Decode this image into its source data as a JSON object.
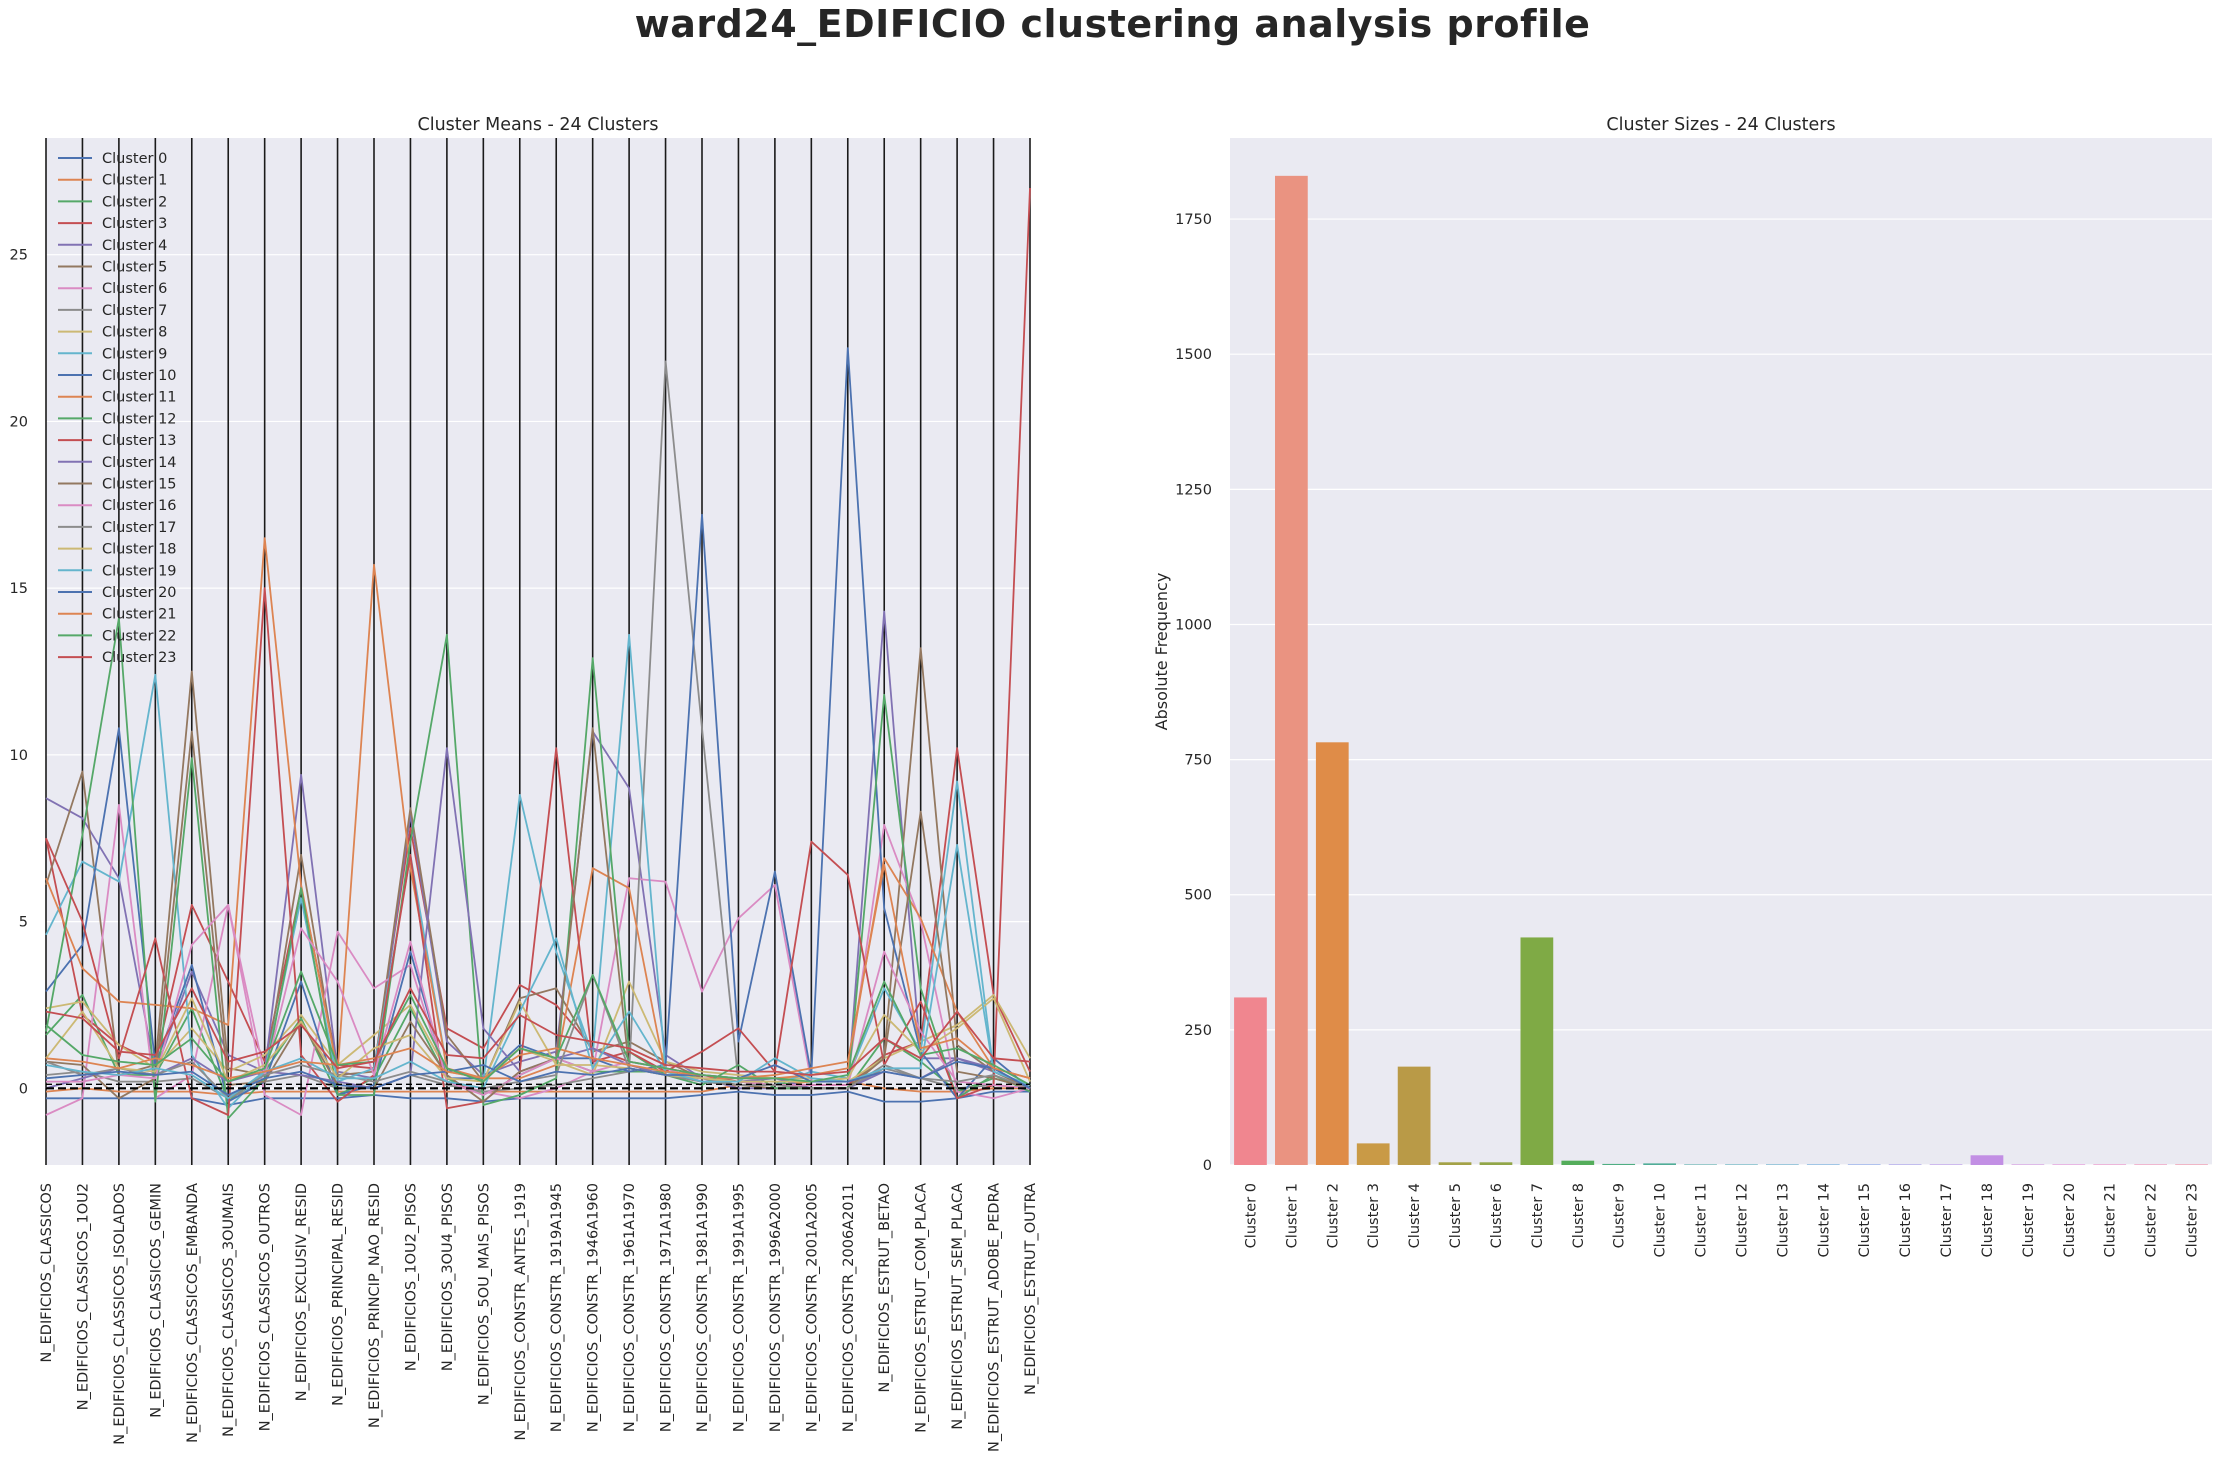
{
  "figure": {
    "suptitle": "ward24_EDIFICIO clustering analysis profile"
  },
  "chart_data": [
    {
      "type": "line",
      "title": "Cluster Means - 24 Clusters",
      "xlabel": "",
      "ylabel": "",
      "ylim": [
        -2.3,
        28.5
      ],
      "yticks": [
        0,
        5,
        10,
        15,
        20,
        25
      ],
      "grid": true,
      "legend_placement": "upper-left",
      "reference_lines": [
        0,
        0.12
      ],
      "categories": [
        "N_EDIFICIOS_CLASSICOS",
        "N_EDIFICIOS_CLASSICOS_1OU2",
        "N_EDIFICIOS_CLASSICOS_ISOLADOS",
        "N_EDIFICIOS_CLASSICOS_GEMIN",
        "N_EDIFICIOS_CLASSICOS_EMBANDA",
        "N_EDIFICIOS_CLASSICOS_3OUMAIS",
        "N_EDIFICIOS_CLASSICOS_OUTROS",
        "N_EDIFICIOS_EXCLUSIV_RESID",
        "N_EDIFICIOS_PRINCIPAL_RESID",
        "N_EDIFICIOS_PRINCIP_NAO_RESID",
        "N_EDIFICIOS_1OU2_PISOS",
        "N_EDIFICIOS_3OU4_PISOS",
        "N_EDIFICIOS_5OU_MAIS_PISOS",
        "N_EDIFICIOS_CONSTR_ANTES_1919",
        "N_EDIFICIOS_CONSTR_1919A1945",
        "N_EDIFICIOS_CONSTR_1946A1960",
        "N_EDIFICIOS_CONSTR_1961A1970",
        "N_EDIFICIOS_CONSTR_1971A1980",
        "N_EDIFICIOS_CONSTR_1981A1990",
        "N_EDIFICIOS_CONSTR_1991A1995",
        "N_EDIFICIOS_CONSTR_1996A2000",
        "N_EDIFICIOS_CONSTR_2001A2005",
        "N_EDIFICIOS_CONSTR_2006A2011",
        "N_EDIFICIOS_ESTRUT_BETAO",
        "N_EDIFICIOS_ESTRUT_COM_PLACA",
        "N_EDIFICIOS_ESTRUT_SEM_PLACA",
        "N_EDIFICIOS_ESTRUT_ADOBE_PEDRA",
        "N_EDIFICIOS_ESTRUT_OUTRA"
      ],
      "series": [
        {
          "name": "Cluster 0",
          "color": "#4c72b0",
          "values": [
            -0.3,
            -0.3,
            -0.3,
            -0.3,
            -0.3,
            -0.5,
            -0.3,
            -0.3,
            -0.3,
            -0.2,
            -0.3,
            -0.3,
            -0.4,
            -0.3,
            -0.3,
            -0.3,
            -0.3,
            -0.3,
            -0.2,
            -0.1,
            -0.2,
            -0.2,
            -0.1,
            -0.4,
            -0.4,
            -0.3,
            -0.1,
            -0.1
          ]
        },
        {
          "name": "Cluster 1",
          "color": "#dd8452",
          "values": [
            -0.1,
            0.0,
            -0.1,
            -0.1,
            -0.1,
            -0.2,
            -0.1,
            -0.1,
            -0.1,
            -0.1,
            -0.1,
            -0.1,
            -0.1,
            -0.1,
            -0.1,
            -0.1,
            -0.1,
            -0.1,
            -0.1,
            0.1,
            0.1,
            0.2,
            0.2,
            0.0,
            -0.1,
            -0.1,
            0.0,
            0.0
          ]
        },
        {
          "name": "Cluster 2",
          "color": "#55a868",
          "values": [
            1.6,
            2.8,
            0.4,
            0.4,
            2.4,
            -0.4,
            0.5,
            2.1,
            -0.2,
            0.3,
            2.4,
            0.3,
            -0.2,
            0.4,
            0.9,
            0.5,
            0.5,
            0.5,
            0.3,
            0.2,
            0.2,
            0.0,
            0.0,
            1.5,
            0.8,
            -0.1,
            0.3,
            0.0
          ]
        },
        {
          "name": "Cluster 3",
          "color": "#c44e52",
          "values": [
            7.5,
            2.2,
            1.3,
            0.8,
            5.5,
            3.2,
            0.8,
            6.0,
            0.7,
            0.6,
            7.8,
            1.8,
            1.2,
            3.1,
            2.5,
            1.2,
            0.8,
            0.6,
            0.4,
            0.2,
            0.1,
            0.1,
            0.1,
            1.0,
            1.4,
            10.2,
            2.8,
            0.5
          ]
        },
        {
          "name": "Cluster 4",
          "color": "#8172b3",
          "values": [
            8.7,
            8.1,
            6.3,
            0.5,
            3.5,
            1.0,
            0.5,
            9.4,
            0.5,
            0.3,
            8.2,
            1.4,
            0.4,
            0.8,
            1.1,
            10.7,
            9.0,
            1.0,
            0.3,
            0.0,
            0.0,
            0.0,
            0.0,
            14.3,
            0.9,
            0.9,
            0.5,
            0.0
          ]
        },
        {
          "name": "Cluster 5",
          "color": "#937860",
          "values": [
            6.1,
            9.5,
            0.4,
            0.7,
            12.5,
            0.6,
            0.4,
            7.0,
            0.4,
            0.5,
            8.4,
            1.6,
            0.2,
            2.7,
            3.0,
            1.1,
            1.4,
            0.8,
            0.3,
            0.1,
            0.0,
            0.0,
            0.0,
            1.0,
            13.2,
            1.3,
            0.5,
            0.0
          ]
        },
        {
          "name": "Cluster 6",
          "color": "#da8bc3",
          "values": [
            -0.8,
            -0.3,
            8.5,
            -0.3,
            0.4,
            5.5,
            -0.2,
            -0.8,
            4.7,
            3.0,
            3.7,
            0.2,
            -0.1,
            -0.3,
            0.0,
            0.5,
            6.3,
            6.2,
            2.9,
            5.1,
            6.1,
            0.2,
            0.3,
            7.9,
            5.0,
            -0.1,
            -0.3,
            0.0
          ]
        },
        {
          "name": "Cluster 7",
          "color": "#8c8c8c",
          "values": [
            0.4,
            0.5,
            0.2,
            0.2,
            0.3,
            -0.3,
            0.2,
            0.4,
            0.0,
            0.0,
            0.4,
            0.1,
            -0.1,
            0.0,
            0.1,
            0.3,
            0.5,
            21.8,
            10.8,
            0.2,
            0.1,
            0.0,
            0.0,
            0.6,
            0.3,
            0.0,
            0.1,
            0.0
          ]
        },
        {
          "name": "Cluster 8",
          "color": "#ccb974",
          "values": [
            2.4,
            2.6,
            1.3,
            0.6,
            1.8,
            0.5,
            1.0,
            2.2,
            0.7,
            1.6,
            2.5,
            0.5,
            0.3,
            1.2,
            0.8,
            0.4,
            3.2,
            0.8,
            0.5,
            0.4,
            0.3,
            0.3,
            0.2,
            0.9,
            1.4,
            1.9,
            2.8,
            0.9
          ]
        },
        {
          "name": "Cluster 9",
          "color": "#64b5cd",
          "values": [
            4.6,
            6.8,
            6.2,
            12.4,
            1.0,
            -0.6,
            0.5,
            5.7,
            0.2,
            0.6,
            7.0,
            0.6,
            0.2,
            8.8,
            4.1,
            1.0,
            13.6,
            0.5,
            0.2,
            0.1,
            0.1,
            0.5,
            0.3,
            3.0,
            1.1,
            9.2,
            0.5,
            0.1
          ]
        },
        {
          "name": "Cluster 10",
          "color": "#4c72b0",
          "values": [
            2.9,
            4.3,
            10.8,
            0.7,
            3.7,
            -0.4,
            0.2,
            3.2,
            -0.2,
            0.1,
            4.1,
            0.3,
            0.3,
            1.3,
            0.9,
            0.9,
            0.5,
            0.7,
            17.2,
            1.4,
            6.5,
            0.4,
            22.2,
            5.4,
            1.1,
            -0.3,
            0.9,
            0.0
          ]
        },
        {
          "name": "Cluster 11",
          "color": "#dd8452",
          "values": [
            6.3,
            3.6,
            2.6,
            2.5,
            2.4,
            1.9,
            16.5,
            6.1,
            0.5,
            15.7,
            6.6,
            0.6,
            0.3,
            0.3,
            0.7,
            6.6,
            6.0,
            0.4,
            0.3,
            0.3,
            0.3,
            0.4,
            0.6,
            6.9,
            5.1,
            2.3,
            0.6,
            0.3
          ]
        },
        {
          "name": "Cluster 12",
          "color": "#55a868",
          "values": [
            1.7,
            7.6,
            14.1,
            -0.4,
            9.9,
            -0.9,
            0.3,
            6.0,
            -0.2,
            -0.2,
            7.4,
            13.6,
            -0.5,
            -0.2,
            0.3,
            12.9,
            1.1,
            0.4,
            0.1,
            0.7,
            0.0,
            0.0,
            0.0,
            11.8,
            3.0,
            -0.3,
            0.4,
            -0.1
          ]
        },
        {
          "name": "Cluster 13",
          "color": "#c44e52",
          "values": [
            7.5,
            5.0,
            0.9,
            4.5,
            -0.3,
            -0.8,
            15.0,
            1.0,
            -0.4,
            0.4,
            7.0,
            -0.6,
            -0.4,
            0.5,
            10.2,
            0.8,
            1.1,
            0.5,
            1.1,
            1.8,
            0.5,
            7.4,
            6.4,
            0.7,
            2.6,
            -0.3,
            0.1,
            27.0
          ]
        },
        {
          "name": "Cluster 14",
          "color": "#8172b3",
          "values": [
            0.0,
            0.3,
            0.6,
            0.4,
            0.9,
            0.2,
            0.5,
            0.4,
            0.2,
            0.0,
            0.4,
            10.2,
            1.8,
            0.5,
            0.9,
            1.2,
            0.7,
            0.4,
            0.3,
            0.2,
            0.3,
            0.0,
            0.0,
            0.5,
            0.3,
            0.9,
            0.6,
            0.0
          ]
        },
        {
          "name": "Cluster 15",
          "color": "#937860",
          "values": [
            0.8,
            0.7,
            -0.3,
            0.3,
            10.7,
            0.1,
            0.2,
            2.0,
            0.1,
            0.0,
            2.0,
            0.4,
            -0.4,
            0.5,
            0.9,
            10.8,
            0.6,
            0.4,
            0.2,
            0.1,
            0.1,
            0.0,
            0.0,
            0.9,
            8.3,
            0.5,
            0.3,
            0.0
          ]
        },
        {
          "name": "Cluster 16",
          "color": "#da8bc3",
          "values": [
            0.2,
            0.2,
            0.4,
            0.3,
            4.3,
            5.5,
            0.4,
            4.8,
            3.2,
            0.4,
            4.4,
            0.2,
            -0.2,
            0.4,
            0.9,
            0.5,
            0.8,
            0.6,
            0.2,
            0.2,
            0.1,
            0.1,
            0.1,
            4.1,
            1.7,
            0.2,
            0.1,
            0.0
          ]
        },
        {
          "name": "Cluster 17",
          "color": "#8c8c8c",
          "values": [
            0.8,
            0.4,
            0.6,
            0.4,
            0.8,
            -0.3,
            0.4,
            0.7,
            0.4,
            0.2,
            0.5,
            0.2,
            0.0,
            0.2,
            0.4,
            3.4,
            0.6,
            0.4,
            0.2,
            0.1,
            0.1,
            0.0,
            0.0,
            0.7,
            0.3,
            0.2,
            0.4,
            0.0
          ]
        },
        {
          "name": "Cluster 18",
          "color": "#ccb974",
          "values": [
            0.9,
            2.3,
            0.6,
            0.5,
            2.7,
            0.2,
            0.7,
            2.0,
            0.3,
            1.2,
            1.6,
            0.3,
            0.2,
            2.6,
            0.7,
            0.7,
            0.6,
            0.4,
            0.3,
            0.2,
            0.2,
            0.2,
            0.3,
            2.2,
            1.1,
            1.8,
            2.7,
            0.2
          ]
        },
        {
          "name": "Cluster 19",
          "color": "#64b5cd",
          "values": [
            0.7,
            0.5,
            0.4,
            0.6,
            0.4,
            -0.3,
            0.5,
            0.9,
            0.3,
            0.3,
            0.8,
            0.2,
            0.0,
            2.3,
            4.5,
            0.6,
            2.3,
            0.5,
            0.2,
            0.2,
            0.9,
            0.3,
            0.2,
            0.6,
            0.6,
            7.3,
            0.5,
            0.1
          ]
        },
        {
          "name": "Cluster 20",
          "color": "#4c72b0",
          "values": [
            0.3,
            0.4,
            0.5,
            0.4,
            0.5,
            -0.2,
            0.3,
            0.5,
            0.1,
            0.0,
            0.4,
            0.5,
            0.7,
            0.2,
            0.5,
            0.4,
            0.6,
            0.4,
            0.4,
            0.3,
            0.7,
            0.2,
            0.2,
            0.5,
            0.3,
            0.8,
            0.6,
            0.0
          ]
        },
        {
          "name": "Cluster 21",
          "color": "#dd8452",
          "values": [
            0.9,
            0.8,
            0.6,
            0.9,
            0.7,
            0.3,
            0.5,
            0.8,
            0.7,
            0.9,
            1.2,
            0.5,
            0.3,
            1.0,
            1.2,
            0.9,
            0.7,
            0.5,
            0.4,
            0.3,
            0.4,
            0.6,
            0.8,
            6.7,
            1.2,
            1.5,
            0.6,
            0.3
          ]
        },
        {
          "name": "Cluster 22",
          "color": "#55a868",
          "values": [
            1.9,
            1.0,
            0.8,
            0.7,
            1.5,
            0.2,
            0.6,
            3.5,
            0.7,
            0.8,
            2.8,
            0.6,
            0.2,
            1.2,
            0.9,
            3.4,
            0.8,
            0.6,
            0.4,
            0.3,
            0.3,
            0.2,
            0.4,
            3.2,
            1.0,
            1.2,
            0.7,
            0.1
          ]
        },
        {
          "name": "Cluster 23",
          "color": "#c44e52",
          "values": [
            2.3,
            2.1,
            1.1,
            1.0,
            3.0,
            0.8,
            1.1,
            1.9,
            0.6,
            0.8,
            3.0,
            1.0,
            0.9,
            2.2,
            1.6,
            1.4,
            1.2,
            0.7,
            0.6,
            0.5,
            0.5,
            0.4,
            0.5,
            1.5,
            0.9,
            2.3,
            0.9,
            0.8
          ]
        }
      ]
    },
    {
      "type": "bar",
      "title": "Cluster Sizes - 24 Clusters",
      "xlabel": "",
      "ylabel": "Absolute Frequency",
      "ylim": [
        0,
        1900
      ],
      "yticks": [
        0,
        250,
        500,
        750,
        1000,
        1250,
        1500,
        1750
      ],
      "grid": true,
      "categories": [
        "Cluster 0",
        "Cluster 1",
        "Cluster 2",
        "Cluster 3",
        "Cluster 4",
        "Cluster 5",
        "Cluster 6",
        "Cluster 7",
        "Cluster 8",
        "Cluster 9",
        "Cluster 10",
        "Cluster 11",
        "Cluster 12",
        "Cluster 13",
        "Cluster 14",
        "Cluster 15",
        "Cluster 16",
        "Cluster 17",
        "Cluster 18",
        "Cluster 19",
        "Cluster 20",
        "Cluster 21",
        "Cluster 22",
        "Cluster 23"
      ],
      "values": [
        310,
        1830,
        782,
        40,
        182,
        5,
        5,
        421,
        8,
        2,
        3,
        1,
        1,
        1,
        1,
        1,
        1,
        1,
        18,
        1,
        1,
        1,
        1,
        1
      ],
      "colors": [
        "#f0868f",
        "#ea9381",
        "#df8c48",
        "#c99a46",
        "#b99a47",
        "#a4a247",
        "#92a648",
        "#7faa45",
        "#54ad5b",
        "#4fae83",
        "#50ad97",
        "#52aca8",
        "#53aab8",
        "#58a7c8",
        "#5fa3db",
        "#7b9be8",
        "#9b93e9",
        "#b38ee8",
        "#c28fe4",
        "#d18cde",
        "#e188d5",
        "#eb86c3",
        "#f088b2",
        "#f1879f"
      ]
    }
  ]
}
